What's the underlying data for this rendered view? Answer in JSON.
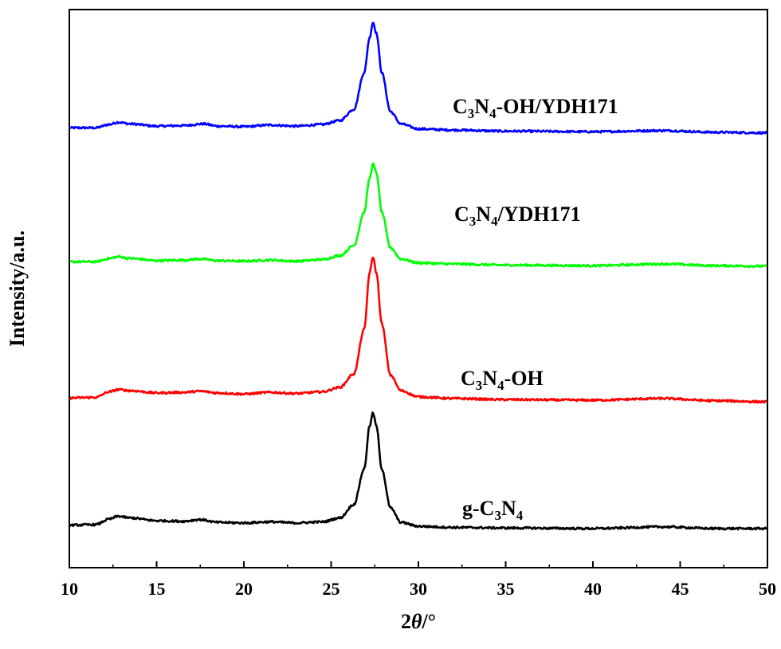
{
  "chart_data": {
    "type": "line",
    "xlabel_prefix": "2",
    "xlabel_var": "θ",
    "xlabel_suffix": "/°",
    "ylabel": "Intensity/a.u.",
    "xlim": [
      10,
      50
    ],
    "x_ticks": [
      10,
      15,
      20,
      25,
      30,
      35,
      40,
      45,
      50
    ],
    "y_ticks_shown": false,
    "grid": false,
    "legend": "inline labels beside each curve",
    "series": [
      {
        "name_parts": [
          [
            "C",
            ""
          ],
          [
            "3",
            "sub"
          ],
          [
            "N",
            ""
          ],
          [
            "4",
            "sub"
          ],
          [
            "-OH/YDH171",
            ""
          ]
        ],
        "color": "#0000ff",
        "offset": 3,
        "baseline_start": 0.055,
        "baseline_end": 0.01,
        "x": [
          10,
          11.5,
          12.3,
          12.8,
          13.5,
          15,
          16.5,
          17.7,
          18.5,
          20,
          21.5,
          23,
          24.5,
          25.5,
          26.3,
          26.9,
          27.2,
          27.4,
          27.6,
          27.9,
          28.4,
          29.0,
          30,
          32,
          35,
          40,
          44,
          47,
          50
        ],
        "y": [
          0.055,
          0.055,
          0.085,
          0.105,
          0.09,
          0.07,
          0.075,
          0.09,
          0.07,
          0.065,
          0.08,
          0.07,
          0.085,
          0.12,
          0.22,
          0.55,
          0.86,
          1.0,
          0.9,
          0.55,
          0.2,
          0.09,
          0.045,
          0.035,
          0.025,
          0.02,
          0.03,
          0.015,
          0.01
        ]
      },
      {
        "name_parts": [
          [
            "C",
            ""
          ],
          [
            "3",
            "sub"
          ],
          [
            "N",
            ""
          ],
          [
            "4",
            "sub"
          ],
          [
            "/YDH171",
            ""
          ]
        ],
        "color": "#00ff00",
        "offset": 2,
        "baseline_start": 0.055,
        "baseline_end": 0.015,
        "x": [
          10,
          11.5,
          12.3,
          12.8,
          13.5,
          15,
          16.5,
          17.5,
          18.5,
          20,
          21.5,
          23,
          24.5,
          25.5,
          26.3,
          26.9,
          27.2,
          27.4,
          27.6,
          27.9,
          28.4,
          29.0,
          30,
          32,
          35,
          40,
          44,
          47,
          50
        ],
        "y": [
          0.055,
          0.055,
          0.085,
          0.1,
          0.085,
          0.065,
          0.07,
          0.08,
          0.065,
          0.06,
          0.07,
          0.06,
          0.075,
          0.11,
          0.2,
          0.5,
          0.8,
          0.93,
          0.85,
          0.5,
          0.18,
          0.08,
          0.045,
          0.035,
          0.025,
          0.02,
          0.035,
          0.02,
          0.015
        ]
      },
      {
        "name_parts": [
          [
            "C",
            ""
          ],
          [
            "3",
            "sub"
          ],
          [
            "N",
            ""
          ],
          [
            "4",
            "sub"
          ],
          [
            "-OH",
            ""
          ]
        ],
        "color": "#ff0000",
        "offset": 1,
        "baseline_start": 0.035,
        "baseline_end": 0.0,
        "x": [
          10,
          11.5,
          12.3,
          12.8,
          13.5,
          15,
          16.5,
          17.5,
          18.5,
          20,
          21.5,
          23,
          24.5,
          25.5,
          26.3,
          26.9,
          27.2,
          27.4,
          27.6,
          27.9,
          28.4,
          29.0,
          30,
          32,
          35,
          40,
          44,
          47,
          50
        ],
        "y": [
          0.035,
          0.04,
          0.09,
          0.11,
          0.1,
          0.08,
          0.085,
          0.095,
          0.08,
          0.07,
          0.085,
          0.075,
          0.09,
          0.13,
          0.25,
          0.65,
          1.15,
          1.3,
          1.15,
          0.7,
          0.24,
          0.1,
          0.045,
          0.03,
          0.02,
          0.015,
          0.03,
          0.01,
          0.0
        ]
      },
      {
        "name_parts": [
          [
            "g-C",
            ""
          ],
          [
            "3",
            "sub"
          ],
          [
            "N",
            ""
          ],
          [
            "4",
            "sub"
          ]
        ],
        "color": "#000000",
        "offset": 0,
        "baseline_start": 0.095,
        "baseline_end": 0.065,
        "x": [
          10,
          11.5,
          12.3,
          12.8,
          13.5,
          15,
          16.5,
          17.5,
          18.5,
          20,
          21.5,
          23,
          24.5,
          25.5,
          26.3,
          26.9,
          27.2,
          27.4,
          27.6,
          27.9,
          28.4,
          29.0,
          30,
          32,
          35,
          40,
          44,
          47,
          50
        ],
        "y": [
          0.095,
          0.1,
          0.15,
          0.175,
          0.16,
          0.135,
          0.13,
          0.145,
          0.12,
          0.115,
          0.125,
          0.115,
          0.125,
          0.16,
          0.28,
          0.6,
          0.98,
          1.1,
          0.98,
          0.6,
          0.25,
          0.12,
          0.085,
          0.075,
          0.07,
          0.065,
          0.08,
          0.065,
          0.065
        ]
      }
    ]
  }
}
